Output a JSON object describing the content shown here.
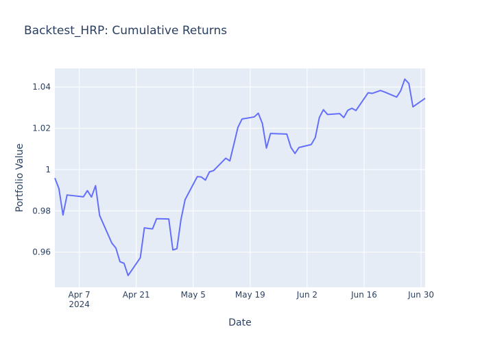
{
  "chart_data": {
    "type": "line",
    "title": "Backtest_HRP: Cumulative Returns",
    "xlabel": "Date",
    "ylabel": "Portfolio Value",
    "x_ticks": [
      {
        "date": "2024-04-07",
        "label": "Apr 7",
        "sublabel": "2024"
      },
      {
        "date": "2024-04-21",
        "label": "Apr 21",
        "sublabel": ""
      },
      {
        "date": "2024-05-05",
        "label": "May 5",
        "sublabel": ""
      },
      {
        "date": "2024-05-19",
        "label": "May 19",
        "sublabel": ""
      },
      {
        "date": "2024-06-02",
        "label": "Jun 2",
        "sublabel": ""
      },
      {
        "date": "2024-06-16",
        "label": "Jun 16",
        "sublabel": ""
      },
      {
        "date": "2024-06-30",
        "label": "Jun 30",
        "sublabel": ""
      }
    ],
    "y_ticks": [
      {
        "value": 0.96,
        "label": "0.96"
      },
      {
        "value": 0.98,
        "label": "0.98"
      },
      {
        "value": 1.0,
        "label": "1"
      },
      {
        "value": 1.02,
        "label": "1.02"
      },
      {
        "value": 1.04,
        "label": "1.04"
      }
    ],
    "xlim": [
      "2024-04-01",
      "2024-07-01"
    ],
    "ylim": [
      0.943,
      1.049
    ],
    "grid": true,
    "line_color": "#636efa",
    "plot_bg": "#e5ecf6",
    "series": [
      {
        "x": [
          "2024-04-01",
          "2024-04-02",
          "2024-04-03",
          "2024-04-04",
          "2024-04-08",
          "2024-04-09",
          "2024-04-10",
          "2024-04-11",
          "2024-04-12",
          "2024-04-15",
          "2024-04-16",
          "2024-04-17",
          "2024-04-18",
          "2024-04-19",
          "2024-04-22",
          "2024-04-23",
          "2024-04-24",
          "2024-04-25",
          "2024-04-26",
          "2024-04-29",
          "2024-04-30",
          "2024-05-01",
          "2024-05-02",
          "2024-05-03",
          "2024-05-06",
          "2024-05-07",
          "2024-05-08",
          "2024-05-09",
          "2024-05-10",
          "2024-05-13",
          "2024-05-14",
          "2024-05-15",
          "2024-05-16",
          "2024-05-17",
          "2024-05-20",
          "2024-05-21",
          "2024-05-22",
          "2024-05-23",
          "2024-05-24",
          "2024-05-28",
          "2024-05-29",
          "2024-05-30",
          "2024-05-31",
          "2024-06-03",
          "2024-06-04",
          "2024-06-05",
          "2024-06-06",
          "2024-06-07",
          "2024-06-10",
          "2024-06-11",
          "2024-06-12",
          "2024-06-13",
          "2024-06-14",
          "2024-06-17",
          "2024-06-18",
          "2024-06-20",
          "2024-06-21",
          "2024-06-24",
          "2024-06-25",
          "2024-06-26",
          "2024-06-27",
          "2024-06-28",
          "2024-07-01"
        ],
        "y": [
          0.9959,
          0.9908,
          0.978,
          0.9877,
          0.9868,
          0.9898,
          0.9867,
          0.9922,
          0.9778,
          0.9644,
          0.962,
          0.9554,
          0.9546,
          0.9487,
          0.9573,
          0.9718,
          0.9715,
          0.9713,
          0.9762,
          0.9761,
          0.9611,
          0.9617,
          0.9759,
          0.9854,
          0.9966,
          0.9964,
          0.9949,
          0.9989,
          0.9995,
          1.0055,
          1.0042,
          1.0123,
          1.0205,
          1.0245,
          1.0255,
          1.0273,
          1.0223,
          1.0104,
          1.0175,
          1.0172,
          1.0108,
          1.0078,
          1.0107,
          1.0121,
          1.0155,
          1.0252,
          1.029,
          1.0267,
          1.0271,
          1.0252,
          1.0287,
          1.0297,
          1.0286,
          1.0372,
          1.0369,
          1.0383,
          1.0376,
          1.0351,
          1.0382,
          1.0438,
          1.0417,
          1.0304,
          1.0345
        ]
      }
    ]
  }
}
